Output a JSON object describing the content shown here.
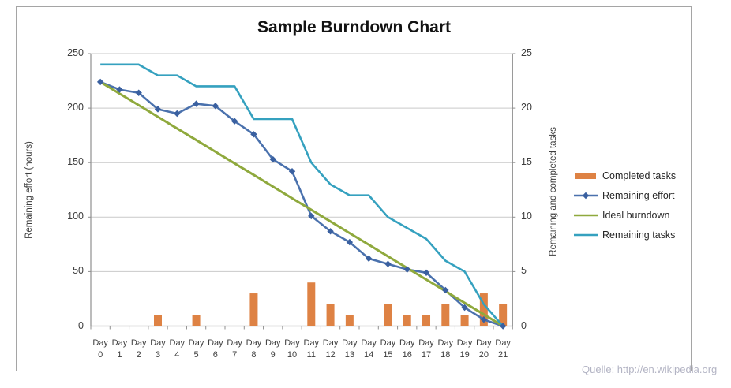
{
  "chart_data": {
    "type": "combo",
    "title": "Sample Burndown Chart",
    "source": "Quelle: http://en.wikipedia.org",
    "grid": true,
    "legend_position": "right",
    "x": {
      "label_word": "Day",
      "days": [
        0,
        1,
        2,
        3,
        4,
        5,
        6,
        7,
        8,
        9,
        10,
        11,
        12,
        13,
        14,
        15,
        16,
        17,
        18,
        19,
        20,
        21
      ]
    },
    "y_left": {
      "label": "Remaining effort (hours)",
      "range": [
        0,
        250
      ],
      "ticks": [
        250,
        200,
        150,
        100,
        50,
        0
      ]
    },
    "y_right": {
      "label": "Remaining and  completed tasks",
      "range": [
        0,
        25
      ],
      "ticks": [
        25,
        20,
        15,
        10,
        5,
        0
      ]
    },
    "series": [
      {
        "name": "Completed tasks",
        "type": "bar",
        "axis": "right",
        "color": "#de8244",
        "values": [
          0,
          0,
          0,
          1,
          0,
          1,
          0,
          0,
          3,
          0,
          0,
          4,
          2,
          1,
          0,
          2,
          1,
          1,
          2,
          1,
          3,
          2
        ]
      },
      {
        "name": "Remaining effort",
        "type": "line",
        "marker": "diamond",
        "axis": "left",
        "color": "#4a71ad",
        "marker_color": "#3a60a0",
        "values": [
          224,
          217,
          214,
          199,
          195,
          204,
          202,
          188,
          176,
          153,
          142,
          101,
          87,
          77,
          62,
          57,
          52,
          49,
          33,
          17,
          6,
          0
        ]
      },
      {
        "name": "Ideal burndown",
        "type": "line",
        "axis": "left",
        "color": "#8fa93d",
        "values": [
          224,
          213.3,
          202.7,
          192,
          181.3,
          170.7,
          160,
          149.3,
          138.7,
          128,
          117.3,
          106.7,
          96,
          85.3,
          74.7,
          64,
          53.3,
          42.7,
          32,
          21.3,
          10.7,
          0
        ]
      },
      {
        "name": "Remaining tasks",
        "type": "line",
        "axis": "right",
        "color": "#35a1bf",
        "values": [
          24,
          24,
          24,
          23,
          23,
          22,
          22,
          22,
          19,
          19,
          19,
          15,
          13,
          12,
          12,
          10,
          9,
          8,
          6,
          5,
          2,
          0
        ]
      }
    ],
    "colors": {
      "gridline": "#c9c9c9",
      "axis": "#8f8f8f",
      "tick_text": "#3d3d3d",
      "title_text": "#121212",
      "source_text": "#b3b4c4"
    }
  }
}
